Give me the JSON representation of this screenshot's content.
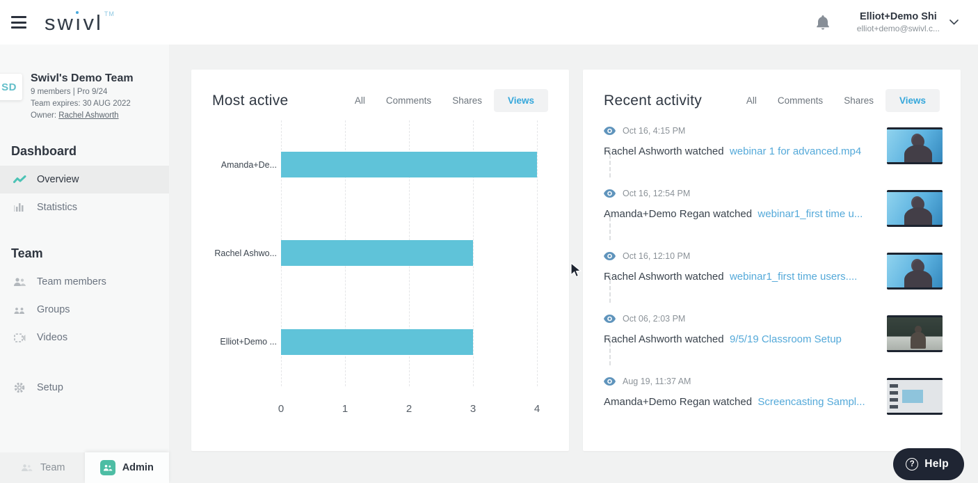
{
  "header": {
    "logo": {
      "part1": "sw",
      "part2": "ı",
      "part3": "vl",
      "tm": "TM"
    },
    "user": {
      "name": "Elliot+Demo Shi",
      "email": "elliot+demo@swivl.c..."
    }
  },
  "sidebar": {
    "team": {
      "avatar_initials": "SD",
      "name": "Swivl's Demo Team",
      "members_line": "9 members | Pro 9/24",
      "expires_line": "Team expires: 30 AUG 2022",
      "owner_label": "Owner: ",
      "owner_name": "Rachel Ashworth"
    },
    "dashboard_heading": "Dashboard",
    "team_heading": "Team",
    "nav": [
      {
        "label": "Overview",
        "icon": "line-chart-icon",
        "active": true
      },
      {
        "label": "Statistics",
        "icon": "bar-chart-icon",
        "active": false
      },
      {
        "label": "Team members",
        "icon": "people-icon",
        "active": false
      },
      {
        "label": "Groups",
        "icon": "groups-icon",
        "active": false
      },
      {
        "label": "Videos",
        "icon": "videos-icon",
        "active": false
      },
      {
        "label": "Setup",
        "icon": "gear-icon",
        "active": false
      }
    ],
    "footer_tabs": [
      {
        "label": "Team",
        "active": false
      },
      {
        "label": "Admin",
        "active": true
      }
    ]
  },
  "most_active": {
    "title": "Most active",
    "tabs": [
      "All",
      "Comments",
      "Shares",
      "Views"
    ],
    "active_tab": "Views"
  },
  "chart_data": {
    "type": "bar",
    "orientation": "horizontal",
    "title": "Most active",
    "series_name": "Views",
    "categories": [
      "Amanda+De...",
      "Rachel Ashwo...",
      "Elliot+Demo ..."
    ],
    "values": [
      4,
      3,
      3
    ],
    "xlim": [
      0,
      4
    ],
    "xticks": [
      "0",
      "1",
      "2",
      "3",
      "4"
    ],
    "grid": "vertical-dashed",
    "bar_color": "#5fc3d9"
  },
  "recent_activity": {
    "title": "Recent activity",
    "tabs": [
      "All",
      "Comments",
      "Shares",
      "Views"
    ],
    "active_tab": "Views",
    "items": [
      {
        "timestamp": "Oct 16, 4:15 PM",
        "actor": "Rachel Ashworth watched",
        "link": "webinar 1 for advanced.mp4",
        "thumbnail": "webinar-woman"
      },
      {
        "timestamp": "Oct 16, 12:54 PM",
        "actor": "Amanda+Demo Regan watched",
        "link": "webinar1_first time u...",
        "thumbnail": "webinar-woman"
      },
      {
        "timestamp": "Oct 16, 12:10 PM",
        "actor": "Rachel Ashworth watched",
        "link": "webinar1_first time users....",
        "thumbnail": "webinar-woman"
      },
      {
        "timestamp": "Oct 06, 2:03 PM",
        "actor": "Rachel Ashworth watched",
        "link": "9/5/19 Classroom Setup",
        "thumbnail": "classroom"
      },
      {
        "timestamp": "Aug 19, 11:37 AM",
        "actor": "Amanda+Demo Regan watched",
        "link": "Screencasting Sampl...",
        "thumbnail": "screencast"
      }
    ]
  },
  "help_button": {
    "icon": "?",
    "label": "Help"
  },
  "colors": {
    "accent_teal": "#4dbda4",
    "bar_teal": "#5fc3d9",
    "link_blue": "#54a9d9",
    "tab_active_blue": "#35a7db",
    "help_bg": "#1f2533",
    "logo_dot_blue": "#4aa9dc"
  }
}
